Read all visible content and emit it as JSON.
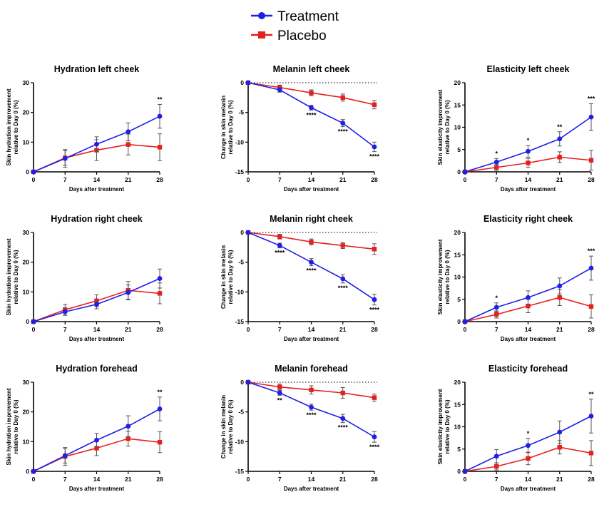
{
  "legend": [
    {
      "name": "Treatment",
      "color": "#1f1fe6",
      "marker": "circle"
    },
    {
      "name": "Placebo",
      "color": "#e61f1f",
      "marker": "square"
    }
  ],
  "chart_data": [
    {
      "type": "line",
      "title": "Hydration left cheek",
      "xlabel": "Days after treatment",
      "ylabel": [
        "Skin hydration improvement",
        "relative to Day 0 (%)"
      ],
      "x": [
        0,
        7,
        14,
        21,
        28
      ],
      "ylim": [
        0,
        30
      ],
      "yticks": [
        0,
        10,
        20,
        30
      ],
      "ytick_labels": [
        "0",
        "10",
        "20",
        "30"
      ],
      "zero_line_dotted": false,
      "series": [
        {
          "name": "Treatment",
          "values": [
            0,
            4.5,
            9.3,
            13.5,
            18.7
          ],
          "errors": [
            0,
            3.0,
            2.5,
            3.0,
            4.0
          ]
        },
        {
          "name": "Placebo",
          "values": [
            0,
            4.7,
            7.3,
            9.2,
            8.3
          ],
          "errors": [
            0,
            2.5,
            3.5,
            3.5,
            4.5
          ]
        }
      ],
      "significance": [
        {
          "x": 28,
          "label": "**"
        }
      ]
    },
    {
      "type": "line",
      "title": "Melanin left cheek",
      "xlabel": "Days after treatment",
      "ylabel": [
        "Change in skin melanin",
        "relative to Day 0 (%)"
      ],
      "x": [
        0,
        7,
        14,
        21,
        28
      ],
      "ylim": [
        -15,
        0
      ],
      "yticks": [
        0,
        -5,
        -10,
        -15
      ],
      "ytick_labels": [
        "0",
        "-5",
        "-10",
        "-15"
      ],
      "zero_line_dotted": true,
      "series": [
        {
          "name": "Treatment",
          "values": [
            0,
            -1.2,
            -4.2,
            -6.8,
            -10.8
          ],
          "errors": [
            0,
            0.4,
            0.4,
            0.6,
            0.8
          ]
        },
        {
          "name": "Placebo",
          "values": [
            0,
            -0.8,
            -1.7,
            -2.5,
            -3.7
          ],
          "errors": [
            0,
            0.4,
            0.5,
            0.6,
            0.7
          ]
        }
      ],
      "significance": [
        {
          "x": 14,
          "label": "****"
        },
        {
          "x": 21,
          "label": "****"
        },
        {
          "x": 28,
          "label": "****"
        }
      ]
    },
    {
      "type": "line",
      "title": "Elasticity left cheek",
      "xlabel": "Days after treatment",
      "ylabel": [
        "Skin elasticity improvement",
        "relative to Day 0 (%)"
      ],
      "x": [
        0,
        7,
        14,
        21,
        28
      ],
      "ylim": [
        0,
        20
      ],
      "yticks": [
        0,
        5,
        10,
        15,
        20
      ],
      "ytick_labels": [
        "0",
        "5",
        "10",
        "15",
        "20"
      ],
      "zero_line_dotted": false,
      "series": [
        {
          "name": "Treatment",
          "values": [
            0,
            2.2,
            4.6,
            7.4,
            12.3
          ],
          "errors": [
            0,
            0.8,
            1.3,
            1.6,
            3.0
          ]
        },
        {
          "name": "Placebo",
          "values": [
            0,
            1.0,
            2.0,
            3.3,
            2.6
          ],
          "errors": [
            0,
            0.7,
            1.0,
            1.2,
            2.2
          ]
        }
      ],
      "significance": [
        {
          "x": 7,
          "label": "*"
        },
        {
          "x": 14,
          "label": "*"
        },
        {
          "x": 21,
          "label": "**"
        },
        {
          "x": 28,
          "label": "***"
        }
      ]
    },
    {
      "type": "line",
      "title": "Hydration right cheek",
      "xlabel": "Days after treatment",
      "ylabel": [
        "Skin hydration improvement",
        "relative to Day 0 (%)"
      ],
      "x": [
        0,
        7,
        14,
        21,
        28
      ],
      "ylim": [
        0,
        30
      ],
      "yticks": [
        0,
        10,
        20,
        30
      ],
      "ytick_labels": [
        "0",
        "10",
        "20",
        "30"
      ],
      "zero_line_dotted": false,
      "series": [
        {
          "name": "Treatment",
          "values": [
            0,
            3.3,
            5.8,
            9.8,
            14.5
          ],
          "errors": [
            0,
            1.2,
            1.5,
            2.5,
            3.2
          ]
        },
        {
          "name": "Placebo",
          "values": [
            0,
            4.0,
            7.0,
            10.5,
            9.5
          ],
          "errors": [
            0,
            1.8,
            2.0,
            3.0,
            3.5
          ]
        }
      ],
      "significance": []
    },
    {
      "type": "line",
      "title": "Melanin right cheek",
      "xlabel": "Days after treatment",
      "ylabel": [
        "Change in skin melanin",
        "relative to Day 0 (%)"
      ],
      "x": [
        0,
        7,
        14,
        21,
        28
      ],
      "ylim": [
        -15,
        0
      ],
      "yticks": [
        0,
        -5,
        -10,
        -15
      ],
      "ytick_labels": [
        "0",
        "-5",
        "-10",
        "-15"
      ],
      "zero_line_dotted": true,
      "series": [
        {
          "name": "Treatment",
          "values": [
            0,
            -2.2,
            -5.0,
            -7.8,
            -11.3
          ],
          "errors": [
            0,
            0.4,
            0.6,
            0.7,
            0.9
          ]
        },
        {
          "name": "Placebo",
          "values": [
            0,
            -0.7,
            -1.6,
            -2.2,
            -2.8
          ],
          "errors": [
            0,
            0.4,
            0.5,
            0.5,
            0.9
          ]
        }
      ],
      "significance": [
        {
          "x": 7,
          "label": "****"
        },
        {
          "x": 14,
          "label": "****"
        },
        {
          "x": 21,
          "label": "****"
        },
        {
          "x": 28,
          "label": "****"
        }
      ]
    },
    {
      "type": "line",
      "title": "Elasticity right cheek",
      "xlabel": "Days after treatment",
      "ylabel": [
        "Skin elasticity improvement",
        "relative to Day 0 (%)"
      ],
      "x": [
        0,
        7,
        14,
        21,
        28
      ],
      "ylim": [
        0,
        20
      ],
      "yticks": [
        0,
        5,
        10,
        15,
        20
      ],
      "ytick_labels": [
        "0",
        "5",
        "10",
        "15",
        "20"
      ],
      "zero_line_dotted": false,
      "series": [
        {
          "name": "Treatment",
          "values": [
            0,
            3.2,
            5.4,
            8.0,
            12.0
          ],
          "errors": [
            0,
            1.0,
            1.5,
            1.8,
            2.7
          ]
        },
        {
          "name": "Placebo",
          "values": [
            0,
            1.6,
            3.5,
            5.4,
            3.4
          ],
          "errors": [
            0,
            0.8,
            1.5,
            1.8,
            2.6
          ]
        }
      ],
      "significance": [
        {
          "x": 7,
          "label": "*"
        },
        {
          "x": 28,
          "label": "***"
        }
      ]
    },
    {
      "type": "line",
      "title": "Hydration forehead",
      "xlabel": "Days after treatment",
      "ylabel": [
        "Skin hydration improvement",
        "relative to Day 0 (%)"
      ],
      "x": [
        0,
        7,
        14,
        21,
        28
      ],
      "ylim": [
        0,
        30
      ],
      "yticks": [
        0,
        10,
        20,
        30
      ],
      "ytick_labels": [
        "0",
        "10",
        "20",
        "30"
      ],
      "zero_line_dotted": false,
      "series": [
        {
          "name": "Treatment",
          "values": [
            0,
            5.3,
            10.5,
            15.2,
            21.0
          ],
          "errors": [
            0,
            2.5,
            2.3,
            3.5,
            4.0
          ]
        },
        {
          "name": "Placebo",
          "values": [
            0,
            5.0,
            7.8,
            11.0,
            9.8
          ],
          "errors": [
            0,
            3.0,
            2.5,
            2.5,
            3.5
          ]
        }
      ],
      "significance": [
        {
          "x": 28,
          "label": "**"
        }
      ]
    },
    {
      "type": "line",
      "title": "Melanin forehead",
      "xlabel": "Days after treatment",
      "ylabel": [
        "Change in skin melanin",
        "relative to Day 0 (%)"
      ],
      "x": [
        0,
        7,
        14,
        21,
        28
      ],
      "ylim": [
        -15,
        0
      ],
      "yticks": [
        0,
        -5,
        -10,
        -15
      ],
      "ytick_labels": [
        "0",
        "-5",
        "-10",
        "-15"
      ],
      "zero_line_dotted": true,
      "series": [
        {
          "name": "Treatment",
          "values": [
            0,
            -1.8,
            -4.2,
            -6.1,
            -9.2
          ],
          "errors": [
            0,
            0.4,
            0.5,
            0.7,
            0.9
          ]
        },
        {
          "name": "Placebo",
          "values": [
            0,
            -0.8,
            -1.3,
            -1.8,
            -2.6
          ],
          "errors": [
            0,
            0.5,
            0.7,
            0.9,
            0.6
          ]
        }
      ],
      "significance": [
        {
          "x": 7,
          "label": "**"
        },
        {
          "x": 14,
          "label": "****"
        },
        {
          "x": 21,
          "label": "****"
        },
        {
          "x": 28,
          "label": "****"
        }
      ]
    },
    {
      "type": "line",
      "title": "Elasticity forehead",
      "xlabel": "Days after treatment",
      "ylabel": [
        "Skin elasticity improvement",
        "relative to Day 0 (%)"
      ],
      "x": [
        0,
        7,
        14,
        21,
        28
      ],
      "ylim": [
        0,
        20
      ],
      "yticks": [
        0,
        5,
        10,
        15,
        20
      ],
      "ytick_labels": [
        "0",
        "5",
        "10",
        "15",
        "20"
      ],
      "zero_line_dotted": false,
      "series": [
        {
          "name": "Treatment",
          "values": [
            0,
            3.4,
            5.8,
            8.8,
            12.4
          ],
          "errors": [
            0,
            1.5,
            1.6,
            2.5,
            3.8
          ]
        },
        {
          "name": "Placebo",
          "values": [
            0,
            1.1,
            2.9,
            5.4,
            4.1
          ],
          "errors": [
            0,
            0.8,
            1.4,
            1.5,
            2.8
          ]
        }
      ],
      "significance": [
        {
          "x": 14,
          "label": "*"
        },
        {
          "x": 28,
          "label": "**"
        }
      ]
    }
  ]
}
